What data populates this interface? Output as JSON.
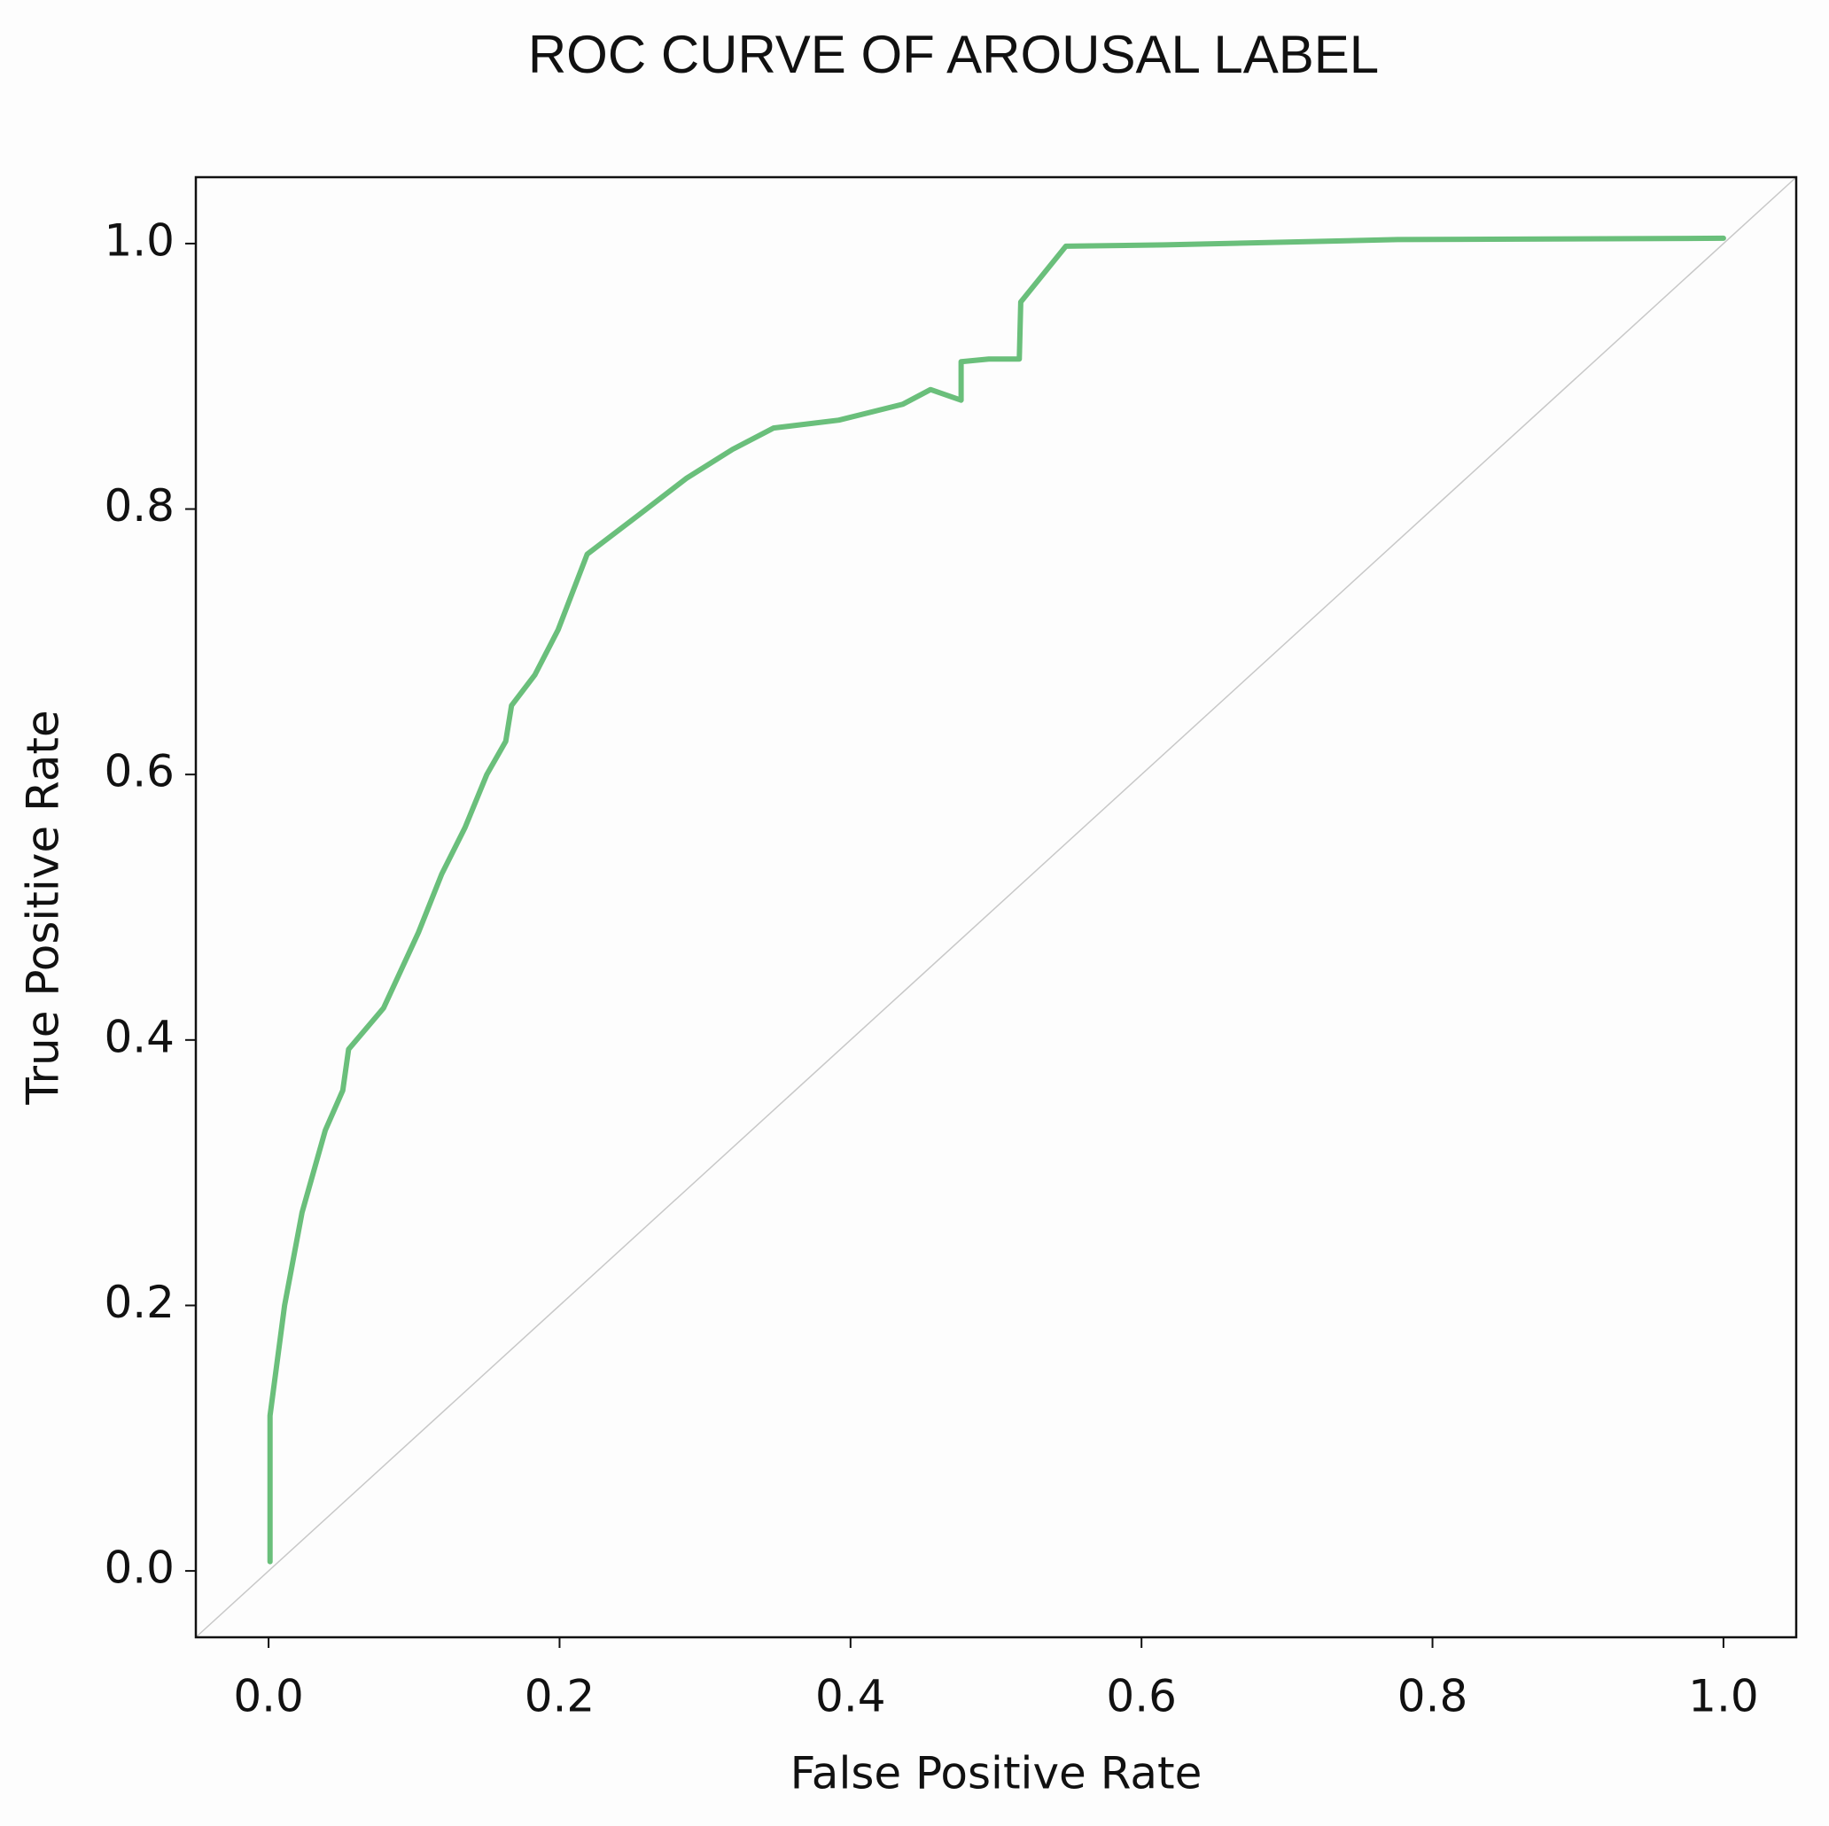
{
  "chart_data": {
    "type": "line",
    "title": "ROC CURVE OF AROUSAL LABEL",
    "xlabel": "False Positive Rate",
    "ylabel": "True Positive Rate",
    "x": [
      0.001,
      0.001,
      0.001,
      0.011,
      0.023,
      0.039,
      0.051,
      0.055,
      0.079,
      0.103,
      0.119,
      0.135,
      0.15,
      0.163,
      0.167,
      0.183,
      0.199,
      0.219,
      0.255,
      0.287,
      0.319,
      0.347,
      0.392,
      0.436,
      0.455,
      0.476,
      0.476,
      0.495,
      0.516,
      0.517,
      0.548,
      0.616,
      0.776,
      1.0
    ],
    "values": [
      0.007,
      0.086,
      0.117,
      0.2,
      0.27,
      0.332,
      0.362,
      0.393,
      0.424,
      0.481,
      0.525,
      0.56,
      0.6,
      0.625,
      0.652,
      0.675,
      0.709,
      0.766,
      0.796,
      0.823,
      0.845,
      0.861,
      0.867,
      0.879,
      0.89,
      0.882,
      0.911,
      0.913,
      0.913,
      0.956,
      0.998,
      0.999,
      1.003,
      1.004
    ],
    "color": "#6abf7b",
    "xlim": [
      -0.05,
      1.05
    ],
    "ylim": [
      -0.05,
      1.05
    ],
    "xticks": [
      {
        "value": 0,
        "label": "0.0"
      },
      0.2,
      0.4,
      0.6,
      0.8,
      {
        "value": 1,
        "label": "1.0"
      }
    ],
    "yticks": [
      {
        "value": 0,
        "label": "0.0"
      },
      0.2,
      0.4,
      0.6,
      0.8,
      {
        "value": 1,
        "label": "1.0"
      }
    ],
    "grid": false
  }
}
